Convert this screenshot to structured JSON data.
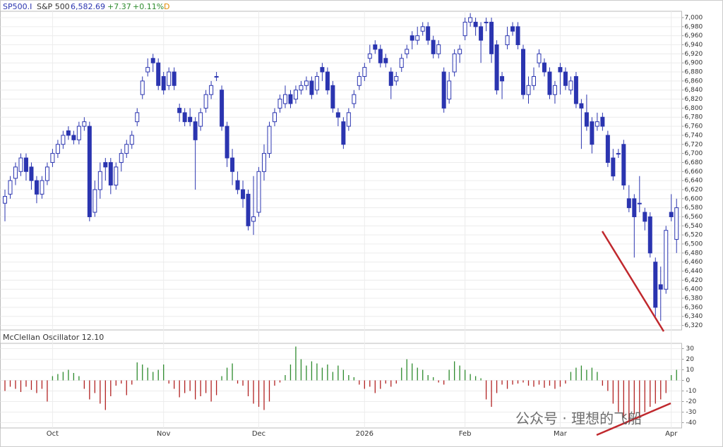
{
  "chart_data": [
    {
      "type": "candlestick",
      "header": {
        "symbol": "SP500.I",
        "name": "S&P 500",
        "last": "6,582.69",
        "change": "+7.37",
        "change_pct": "+0.11%",
        "period": "D"
      },
      "color": "#2b35b0",
      "categories": [
        null,
        null,
        null,
        null,
        null,
        null,
        null,
        null,
        null,
        "Oct",
        null,
        null,
        null,
        null,
        null,
        null,
        null,
        null,
        null,
        null,
        null,
        null,
        null,
        null,
        null,
        null,
        null,
        null,
        null,
        null,
        "Nov",
        null,
        null,
        null,
        null,
        null,
        null,
        null,
        null,
        null,
        null,
        null,
        null,
        null,
        null,
        null,
        null,
        null,
        "Dec",
        null,
        null,
        null,
        null,
        null,
        null,
        null,
        null,
        null,
        null,
        null,
        null,
        null,
        null,
        null,
        null,
        null,
        null,
        null,
        "2026",
        null,
        null,
        null,
        null,
        null,
        null,
        null,
        null,
        null,
        null,
        null,
        null,
        null,
        null,
        null,
        null,
        null,
        null,
        "Feb",
        null,
        null,
        null,
        null,
        null,
        null,
        null,
        null,
        null,
        null,
        null,
        null,
        null,
        null,
        null,
        null,
        null,
        "Mar",
        null,
        null,
        null,
        null,
        null,
        null,
        null,
        null,
        null,
        null,
        null,
        null,
        null,
        null,
        null,
        null,
        null,
        null,
        null,
        null,
        "Apr",
        null
      ],
      "ohlc": [
        [
          6590,
          6620,
          6550,
          6605
        ],
        [
          6610,
          6650,
          6600,
          6640
        ],
        [
          6645,
          6680,
          6630,
          6670
        ],
        [
          6660,
          6700,
          6650,
          6690
        ],
        [
          6690,
          6700,
          6640,
          6660
        ],
        [
          6670,
          6680,
          6620,
          6640
        ],
        [
          6640,
          6650,
          6590,
          6610
        ],
        [
          6610,
          6650,
          6600,
          6640
        ],
        [
          6640,
          6680,
          6630,
          6670
        ],
        [
          6680,
          6710,
          6670,
          6700
        ],
        [
          6700,
          6730,
          6690,
          6720
        ],
        [
          6720,
          6750,
          6710,
          6740
        ],
        [
          6750,
          6760,
          6730,
          6740
        ],
        [
          6740,
          6750,
          6720,
          6730
        ],
        [
          6730,
          6770,
          6720,
          6760
        ],
        [
          6760,
          6780,
          6750,
          6770
        ],
        [
          6760,
          6770,
          6550,
          6560
        ],
        [
          6570,
          6640,
          6560,
          6620
        ],
        [
          6620,
          6680,
          6600,
          6660
        ],
        [
          6680,
          6690,
          6640,
          6670
        ],
        [
          6680,
          6690,
          6610,
          6630
        ],
        [
          6630,
          6680,
          6620,
          6670
        ],
        [
          6680,
          6710,
          6660,
          6700
        ],
        [
          6700,
          6730,
          6690,
          6720
        ],
        [
          6720,
          6750,
          6710,
          6740
        ],
        [
          6770,
          6800,
          6760,
          6790
        ],
        [
          6830,
          6870,
          6820,
          6860
        ],
        [
          6880,
          6910,
          6870,
          6890
        ],
        [
          6910,
          6920,
          6880,
          6900
        ],
        [
          6900,
          6910,
          6840,
          6850
        ],
        [
          6870,
          6880,
          6830,
          6840
        ],
        [
          6850,
          6890,
          6840,
          6880
        ],
        [
          6880,
          6890,
          6840,
          6850
        ],
        [
          6800,
          6810,
          6770,
          6790
        ],
        [
          6790,
          6800,
          6760,
          6770
        ],
        [
          6780,
          6800,
          6760,
          6770
        ],
        [
          6770,
          6780,
          6620,
          6730
        ],
        [
          6760,
          6800,
          6750,
          6790
        ],
        [
          6800,
          6840,
          6790,
          6830
        ],
        [
          6830,
          6860,
          6820,
          6850
        ],
        [
          6870,
          6880,
          6860,
          6870
        ],
        [
          6840,
          6850,
          6750,
          6760
        ],
        [
          6760,
          6770,
          6670,
          6690
        ],
        [
          6690,
          6710,
          6630,
          6660
        ],
        [
          6640,
          6660,
          6610,
          6620
        ],
        [
          6620,
          6640,
          6580,
          6600
        ],
        [
          6610,
          6620,
          6530,
          6540
        ],
        [
          6550,
          6650,
          6520,
          6560
        ],
        [
          6570,
          6670,
          6560,
          6660
        ],
        [
          6660,
          6720,
          6640,
          6700
        ],
        [
          6700,
          6770,
          6690,
          6760
        ],
        [
          6770,
          6800,
          6760,
          6790
        ],
        [
          6800,
          6830,
          6790,
          6820
        ],
        [
          6810,
          6850,
          6800,
          6830
        ],
        [
          6830,
          6840,
          6800,
          6810
        ],
        [
          6820,
          6850,
          6810,
          6840
        ],
        [
          6840,
          6860,
          6830,
          6850
        ],
        [
          6850,
          6870,
          6840,
          6860
        ],
        [
          6860,
          6870,
          6820,
          6830
        ],
        [
          6840,
          6880,
          6830,
          6870
        ],
        [
          6890,
          6900,
          6860,
          6880
        ],
        [
          6880,
          6890,
          6830,
          6840
        ],
        [
          6850,
          6860,
          6790,
          6800
        ],
        [
          6790,
          6800,
          6760,
          6780
        ],
        [
          6770,
          6780,
          6710,
          6720
        ],
        [
          6760,
          6800,
          6750,
          6790
        ],
        [
          6810,
          6840,
          6800,
          6830
        ],
        [
          6850,
          6880,
          6840,
          6870
        ],
        [
          6870,
          6900,
          6860,
          6890
        ],
        [
          6910,
          6940,
          6900,
          6920
        ],
        [
          6940,
          6950,
          6920,
          6930
        ],
        [
          6930,
          6940,
          6890,
          6900
        ],
        [
          6910,
          6920,
          6890,
          6900
        ],
        [
          6880,
          6890,
          6820,
          6850
        ],
        [
          6860,
          6880,
          6850,
          6870
        ],
        [
          6890,
          6920,
          6880,
          6910
        ],
        [
          6920,
          6940,
          6910,
          6930
        ],
        [
          6960,
          6970,
          6930,
          6950
        ],
        [
          6950,
          6980,
          6940,
          6960
        ],
        [
          6970,
          6990,
          6960,
          6980
        ],
        [
          6980,
          6990,
          6940,
          6950
        ],
        [
          6950,
          6960,
          6910,
          6920
        ],
        [
          6920,
          6950,
          6910,
          6940
        ],
        [
          6880,
          6890,
          6790,
          6800
        ],
        [
          6820,
          6880,
          6810,
          6860
        ],
        [
          6880,
          6930,
          6870,
          6920
        ],
        [
          6920,
          6940,
          6900,
          6930
        ],
        [
          6960,
          7000,
          6950,
          6990
        ],
        [
          6990,
          7010,
          6980,
          7000
        ],
        [
          6990,
          7000,
          6960,
          6980
        ],
        [
          6980,
          6990,
          6900,
          6950
        ],
        [
          6990,
          7000,
          6970,
          6990
        ],
        [
          6990,
          7000,
          6900,
          6920
        ],
        [
          6940,
          6950,
          6830,
          6840
        ],
        [
          6870,
          6880,
          6820,
          6860
        ],
        [
          6940,
          6980,
          6930,
          6960
        ],
        [
          6980,
          6990,
          6960,
          6970
        ],
        [
          6980,
          6990,
          6930,
          6940
        ],
        [
          6930,
          6940,
          6820,
          6830
        ],
        [
          6830,
          6870,
          6810,
          6850
        ],
        [
          6850,
          6890,
          6840,
          6870
        ],
        [
          6900,
          6930,
          6890,
          6920
        ],
        [
          6900,
          6910,
          6870,
          6880
        ],
        [
          6880,
          6890,
          6820,
          6830
        ],
        [
          6830,
          6860,
          6810,
          6850
        ],
        [
          6890,
          6900,
          6830,
          6880
        ],
        [
          6880,
          6890,
          6840,
          6850
        ],
        [
          6840,
          6870,
          6830,
          6860
        ],
        [
          6870,
          6880,
          6800,
          6810
        ],
        [
          6810,
          6820,
          6710,
          6800
        ],
        [
          6790,
          6830,
          6750,
          6760
        ],
        [
          6770,
          6780,
          6700,
          6720
        ],
        [
          6760,
          6790,
          6750,
          6770
        ],
        [
          6780,
          6790,
          6750,
          6760
        ],
        [
          6740,
          6750,
          6670,
          6680
        ],
        [
          6690,
          6710,
          6640,
          6650
        ],
        [
          6700,
          6710,
          6690,
          6700
        ],
        [
          6720,
          6730,
          6620,
          6630
        ],
        [
          6600,
          6630,
          6570,
          6580
        ],
        [
          6600,
          6610,
          6470,
          6560
        ],
        [
          6590,
          6650,
          6570,
          6590
        ],
        [
          6570,
          6580,
          6530,
          6550
        ],
        [
          6560,
          6570,
          6470,
          6480
        ],
        [
          6460,
          6470,
          6340,
          6360
        ],
        [
          6410,
          6450,
          6330,
          6400
        ],
        [
          6400,
          6540,
          6390,
          6530
        ],
        [
          6570,
          6610,
          6550,
          6560
        ],
        [
          6510,
          6600,
          6480,
          6580
        ]
      ],
      "ylim": [
        6310,
        7014
      ],
      "yticks": [
        {
          "value": 7000,
          "label": "7,000"
        },
        {
          "value": 6980,
          "label": "6,980"
        },
        {
          "value": 6960,
          "label": "6,960"
        },
        {
          "value": 6940,
          "label": "6,940"
        },
        {
          "value": 6920,
          "label": "6,920"
        },
        {
          "value": 6900,
          "label": "6,900"
        },
        {
          "value": 6880,
          "label": "6,880"
        },
        {
          "value": 6860,
          "label": "6,860"
        },
        {
          "value": 6840,
          "label": "6,840"
        },
        {
          "value": 6820,
          "label": "6,820"
        },
        {
          "value": 6800,
          "label": "6,800"
        },
        {
          "value": 6780,
          "label": "6,780"
        },
        {
          "value": 6760,
          "label": "6,760"
        },
        {
          "value": 6740,
          "label": "6,740"
        },
        {
          "value": 6720,
          "label": "6,720"
        },
        {
          "value": 6700,
          "label": "6,700"
        },
        {
          "value": 6680,
          "label": "6,680"
        },
        {
          "value": 6660,
          "label": "6,660"
        },
        {
          "value": 6640,
          "label": "6,640"
        },
        {
          "value": 6620,
          "label": "6,620"
        },
        {
          "value": 6600,
          "label": "6,600"
        },
        {
          "value": 6580,
          "label": "6,580"
        },
        {
          "value": 6560,
          "label": "6,560"
        },
        {
          "value": 6540,
          "label": "6,540"
        },
        {
          "value": 6520,
          "label": "6,520"
        },
        {
          "value": 6500,
          "label": "6,500"
        },
        {
          "value": 6480,
          "label": "6,480"
        },
        {
          "value": 6460,
          "label": "6,460"
        },
        {
          "value": 6440,
          "label": "6,440"
        },
        {
          "value": 6420,
          "label": "6,420"
        },
        {
          "value": 6400,
          "label": "6,400"
        },
        {
          "value": 6380,
          "label": "6,380"
        },
        {
          "value": 6360,
          "label": "6,360"
        },
        {
          "value": 6340,
          "label": "6,340"
        },
        {
          "value": 6320,
          "label": "6,320"
        }
      ],
      "grid": true,
      "watermark": "公众号 · 理想的飞船"
    },
    {
      "type": "bar",
      "title": "McClellan Oscillator 12.10",
      "positive_color": "#2e8b2e",
      "negative_color": "#b22222",
      "values": [
        -10,
        -6,
        -8,
        -11,
        -6,
        -9,
        -12,
        -8,
        -20,
        4,
        6,
        8,
        10,
        7,
        4,
        -8,
        -18,
        -12,
        -22,
        -28,
        -15,
        -5,
        -3,
        -14,
        -4,
        17,
        15,
        12,
        8,
        10,
        15,
        -3,
        -8,
        -16,
        -12,
        -10,
        -18,
        -15,
        -12,
        -20,
        -14,
        4,
        12,
        16,
        -3,
        -5,
        -15,
        -22,
        -25,
        -28,
        -20,
        -5,
        -2,
        5,
        15,
        32,
        20,
        14,
        18,
        16,
        12,
        15,
        8,
        14,
        10,
        5,
        3,
        -4,
        -8,
        -6,
        -12,
        -8,
        -3,
        -6,
        -3,
        12,
        20,
        16,
        12,
        10,
        5,
        3,
        -2,
        -4,
        10,
        18,
        14,
        10,
        6,
        4,
        2,
        -18,
        -25,
        -12,
        -4,
        -8,
        -4,
        -3,
        -2,
        -5,
        -6,
        -4,
        -7,
        -5,
        -8,
        -6,
        -3,
        8,
        12,
        14,
        10,
        12,
        8,
        -5,
        -10,
        -22,
        -30,
        -35,
        -38,
        -32,
        -36,
        -30,
        -25,
        -22,
        -18,
        -12,
        5,
        10
      ],
      "ylim": [
        -45,
        35
      ],
      "yticks": [
        30,
        20,
        10,
        0,
        -10,
        -20,
        -30,
        -40
      ],
      "grid": true
    }
  ]
}
